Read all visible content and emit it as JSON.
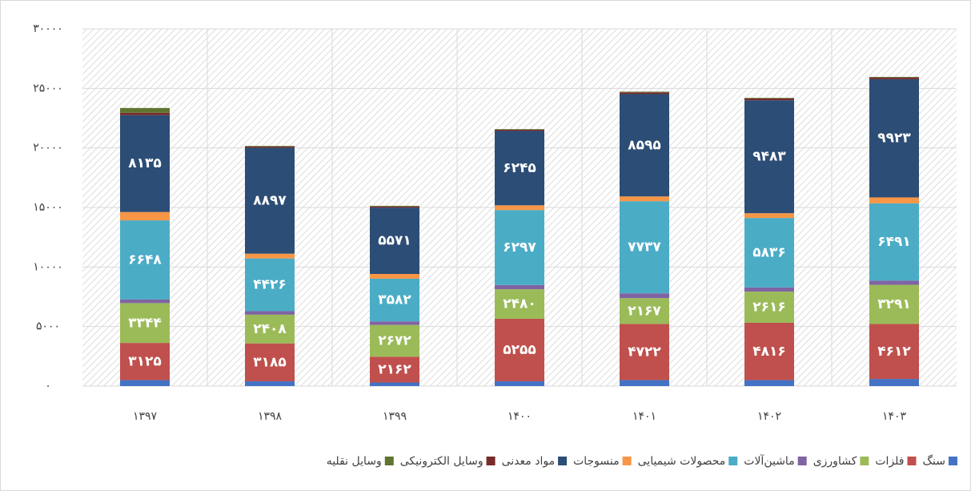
{
  "chart_data": {
    "type": "bar",
    "stacked": true,
    "categories": [
      "۱۳۹۷",
      "۱۳۹۸",
      "۱۳۹۹",
      "۱۴۰۰",
      "۱۴۰۱",
      "۱۴۰۲",
      "۱۴۰۳"
    ],
    "ylim": [
      0,
      30000
    ],
    "yticks": [
      {
        "value": 0,
        "label": "۰"
      },
      {
        "value": 5000,
        "label": "۵۰۰۰"
      },
      {
        "value": 10000,
        "label": "۱۰۰۰۰"
      },
      {
        "value": 15000,
        "label": "۱۵۰۰۰"
      },
      {
        "value": 20000,
        "label": "۲۰۰۰۰"
      },
      {
        "value": 25000,
        "label": "۲۵۰۰۰"
      },
      {
        "value": 30000,
        "label": "۳۰۰۰۰"
      }
    ],
    "grid": true,
    "legend": "bottom",
    "series": [
      {
        "name": "سنگ",
        "color": "#4472c4",
        "values": [
          500,
          400,
          300,
          400,
          500,
          500,
          600
        ]
      },
      {
        "name": "فلزات",
        "color": "#c0504d",
        "values": [
          3125,
          3185,
          2162,
          5255,
          4722,
          4816,
          4612
        ],
        "value_labels": [
          "۳۱۲۵",
          "۳۱۸۵",
          "۲۱۶۲",
          "۵۲۵۵",
          "۴۷۲۲",
          "۴۸۱۶",
          "۴۶۱۲"
        ]
      },
      {
        "name": "کشاورزی",
        "color": "#9bbb59",
        "values": [
          3344,
          2408,
          2672,
          2480,
          2167,
          2616,
          3291
        ],
        "value_labels": [
          "۳۳۴۴",
          "۲۴۰۸",
          "۲۶۷۲",
          "۲۴۸۰",
          "۲۱۶۷",
          "۲۶۱۶",
          "۳۲۹۱"
        ]
      },
      {
        "name": "ماشین‌آلات",
        "color": "#8064a2",
        "values": [
          300,
          300,
          300,
          350,
          400,
          350,
          350
        ]
      },
      {
        "name": "محصولات شیمیایی",
        "color": "#4bacc6",
        "values": [
          6648,
          4426,
          3582,
          6297,
          7737,
          5836,
          6491
        ],
        "value_labels": [
          "۶۶۴۸",
          "۴۴۲۶",
          "۳۵۸۲",
          "۶۲۹۷",
          "۷۷۳۷",
          "۵۸۳۶",
          "۶۴۹۱"
        ]
      },
      {
        "name": "منسوجات",
        "color": "#f79646",
        "values": [
          700,
          400,
          400,
          400,
          400,
          400,
          500
        ]
      },
      {
        "name": "مواد معدنی",
        "color": "#2c4d75",
        "values": [
          8135,
          8897,
          5571,
          6245,
          8595,
          9483,
          9923
        ],
        "value_labels": [
          "۸۱۳۵",
          "۸۸۹۷",
          "۵۵۷۱",
          "۶۲۴۵",
          "۸۵۹۵",
          "۹۴۸۳",
          "۹۹۲۳"
        ]
      },
      {
        "name": "وسایل الکترونیکی",
        "color": "#772c2a",
        "values": [
          200,
          100,
          100,
          100,
          150,
          150,
          150
        ]
      },
      {
        "name": "وسایل نقلیه",
        "color": "#5f7530",
        "values": [
          400,
          50,
          50,
          50,
          50,
          50,
          50
        ]
      }
    ]
  }
}
